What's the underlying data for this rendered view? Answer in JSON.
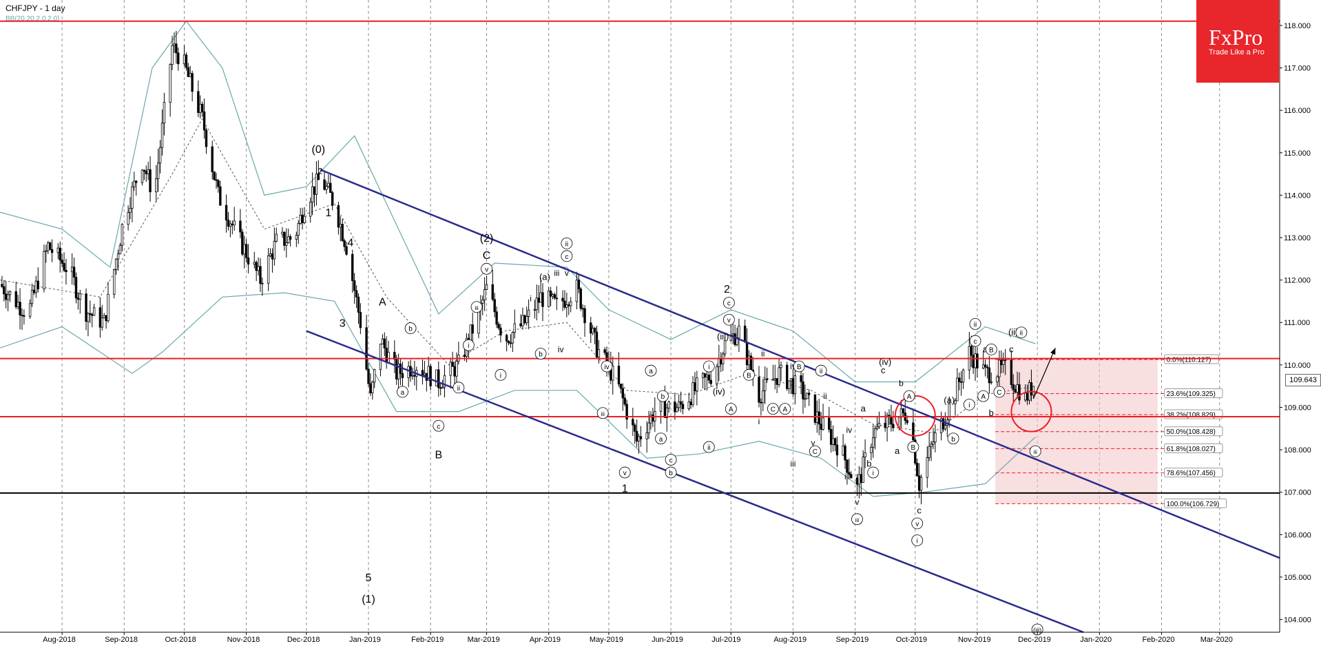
{
  "header": {
    "title": "CHFJPY - 1 day",
    "indicator": "BB(20,20,2,0,2,0)"
  },
  "logo": {
    "brand": "FxPro",
    "tagline": "Trade Like a Pro"
  },
  "colors": {
    "candle": "#000000",
    "bands": "#6aa7ad",
    "channel": "#2b2b8c",
    "level": "#ee1c24",
    "support": "#000000",
    "fib_zone": "#f3c4c6",
    "grid": "#8c8c8c",
    "logo_bg": "#e8262b"
  },
  "chart_data": {
    "type": "candlestick",
    "symbol": "CHFJPY",
    "timeframe": "1 day",
    "x_range": [
      "2018-07-01",
      "2020-03-31"
    ],
    "y_range": [
      103.7,
      118.6
    ],
    "x_ticks": [
      {
        "label": "Aug-2018",
        "date": "2018-08-01"
      },
      {
        "label": "Sep-2018",
        "date": "2018-09-01"
      },
      {
        "label": "Oct-2018",
        "date": "2018-10-01"
      },
      {
        "label": "Nov-2018",
        "date": "2018-11-01"
      },
      {
        "label": "Dec-2018",
        "date": "2018-12-01"
      },
      {
        "label": "Jan-2019",
        "date": "2019-01-01"
      },
      {
        "label": "Feb-2019",
        "date": "2019-02-01"
      },
      {
        "label": "Mar-2019",
        "date": "2019-03-01"
      },
      {
        "label": "Apr-2019",
        "date": "2019-04-01"
      },
      {
        "label": "May-2019",
        "date": "2019-05-01"
      },
      {
        "label": "Jun-2019",
        "date": "2019-06-01"
      },
      {
        "label": "Jul-2019",
        "date": "2019-07-01"
      },
      {
        "label": "Aug-2019",
        "date": "2019-08-01"
      },
      {
        "label": "Sep-2019",
        "date": "2019-09-01"
      },
      {
        "label": "Oct-2019",
        "date": "2019-10-01"
      },
      {
        "label": "Nov-2019",
        "date": "2019-11-01"
      },
      {
        "label": "Dec-2019",
        "date": "2019-12-01"
      },
      {
        "label": "Jan-2020",
        "date": "2020-01-01"
      },
      {
        "label": "Feb-2020",
        "date": "2020-02-01"
      },
      {
        "label": "Mar-2020",
        "date": "2020-03-01"
      }
    ],
    "y_ticks": [
      "104.000",
      "105.000",
      "106.000",
      "107.000",
      "108.000",
      "109.000",
      "110.000",
      "111.000",
      "112.000",
      "113.000",
      "114.000",
      "115.000",
      "116.000",
      "117.000",
      "118.000"
    ],
    "last_price": "109.643",
    "horizontal_levels": [
      {
        "price": 118.1,
        "color": "red"
      },
      {
        "price": 110.15,
        "color": "red"
      },
      {
        "price": 108.78,
        "color": "red"
      },
      {
        "price": 106.98,
        "color": "black"
      }
    ],
    "channel_lines": [
      {
        "from": [
          "2018-12-08",
          114.6
        ],
        "to": [
          "2020-03-31",
          105.45
        ]
      },
      {
        "from": [
          "2018-12-01",
          110.8
        ],
        "to": [
          "2019-12-24",
          103.7
        ]
      }
    ],
    "fibonacci": [
      {
        "label": "0.0%(110.127)",
        "price": 110.127
      },
      {
        "label": "23.6%(109.325)",
        "price": 109.325
      },
      {
        "label": "38.2%(108.829)",
        "price": 108.829
      },
      {
        "label": "50.0%(108.428)",
        "price": 108.428
      },
      {
        "label": "61.8%(108.027)",
        "price": 108.027
      },
      {
        "label": "78.6%(107.456)",
        "price": 107.456
      },
      {
        "label": "100.0%(106.729)",
        "price": 106.729
      }
    ],
    "fib_zone": {
      "from": "2019-11-10",
      "to": "2020-01-30",
      "high": 110.127,
      "low": 106.729
    },
    "circles": [
      {
        "date": "2019-10-01",
        "price": 108.8
      },
      {
        "date": "2019-11-28",
        "price": 108.9
      }
    ],
    "projection_arrow": {
      "from": [
        "2019-11-29",
        109.2
      ],
      "to": [
        "2019-12-10",
        110.4
      ]
    },
    "price_path": [
      [
        "2018-07-01",
        111.9
      ],
      [
        "2018-07-15",
        111.2
      ],
      [
        "2018-07-25",
        112.8
      ],
      [
        "2018-08-05",
        112.2
      ],
      [
        "2018-08-12",
        111.3
      ],
      [
        "2018-08-22",
        111.0
      ],
      [
        "2018-09-01",
        113.5
      ],
      [
        "2018-09-10",
        114.8
      ],
      [
        "2018-09-16",
        114.0
      ],
      [
        "2018-09-25",
        117.5
      ],
      [
        "2018-09-30",
        117.2
      ],
      [
        "2018-10-10",
        115.8
      ],
      [
        "2018-10-18",
        114.0
      ],
      [
        "2018-10-28",
        113.0
      ],
      [
        "2018-11-08",
        112.0
      ],
      [
        "2018-11-16",
        112.9
      ],
      [
        "2018-11-25",
        113.0
      ],
      [
        "2018-12-01",
        113.9
      ],
      [
        "2018-12-08",
        114.4
      ],
      [
        "2018-12-15",
        113.8
      ],
      [
        "2018-12-21",
        112.8
      ],
      [
        "2018-12-28",
        111.0
      ],
      [
        "2019-01-02",
        109.2
      ],
      [
        "2019-01-07",
        110.6
      ],
      [
        "2019-01-15",
        109.8
      ],
      [
        "2019-01-25",
        110.0
      ],
      [
        "2019-02-05",
        109.6
      ],
      [
        "2019-02-15",
        110.0
      ],
      [
        "2019-02-25",
        111.2
      ],
      [
        "2019-03-01",
        111.8
      ],
      [
        "2019-03-10",
        110.6
      ],
      [
        "2019-03-20",
        111.0
      ],
      [
        "2019-03-28",
        111.6
      ],
      [
        "2019-04-05",
        111.4
      ],
      [
        "2019-04-15",
        111.8
      ],
      [
        "2019-04-25",
        110.4
      ],
      [
        "2019-05-05",
        109.6
      ],
      [
        "2019-05-15",
        108.2
      ],
      [
        "2019-05-25",
        109.0
      ],
      [
        "2019-06-05",
        109.0
      ],
      [
        "2019-06-15",
        109.5
      ],
      [
        "2019-06-22",
        109.8
      ],
      [
        "2019-06-28",
        110.5
      ],
      [
        "2019-07-05",
        110.8
      ],
      [
        "2019-07-15",
        109.3
      ],
      [
        "2019-07-25",
        109.8
      ],
      [
        "2019-08-05",
        109.4
      ],
      [
        "2019-08-15",
        108.6
      ],
      [
        "2019-08-25",
        108.0
      ],
      [
        "2019-09-02",
        107.1
      ],
      [
        "2019-09-10",
        108.4
      ],
      [
        "2019-09-20",
        108.7
      ],
      [
        "2019-09-28",
        108.9
      ],
      [
        "2019-10-03",
        107.2
      ],
      [
        "2019-10-10",
        108.2
      ],
      [
        "2019-10-20",
        109.2
      ],
      [
        "2019-10-28",
        110.3
      ],
      [
        "2019-11-05",
        109.8
      ],
      [
        "2019-11-15",
        109.9
      ],
      [
        "2019-11-25",
        109.2
      ],
      [
        "2019-11-30",
        109.64
      ]
    ],
    "band_upper_path": [
      [
        "2018-07-01",
        113.6
      ],
      [
        "2018-08-01",
        113.2
      ],
      [
        "2018-08-25",
        112.3
      ],
      [
        "2018-09-15",
        117.0
      ],
      [
        "2018-10-02",
        118.1
      ],
      [
        "2018-10-20",
        117.0
      ],
      [
        "2018-11-10",
        114.0
      ],
      [
        "2018-12-01",
        114.2
      ],
      [
        "2018-12-25",
        115.4
      ],
      [
        "2019-01-10",
        113.8
      ],
      [
        "2019-02-05",
        111.2
      ],
      [
        "2019-03-05",
        112.4
      ],
      [
        "2019-04-10",
        112.3
      ],
      [
        "2019-05-01",
        111.3
      ],
      [
        "2019-06-01",
        110.6
      ],
      [
        "2019-07-01",
        111.3
      ],
      [
        "2019-08-01",
        110.8
      ],
      [
        "2019-09-01",
        109.6
      ],
      [
        "2019-10-01",
        109.6
      ],
      [
        "2019-11-05",
        110.9
      ],
      [
        "2019-11-30",
        110.5
      ]
    ],
    "band_lower_path": [
      [
        "2018-07-01",
        110.4
      ],
      [
        "2018-08-01",
        110.9
      ],
      [
        "2018-09-05",
        109.8
      ],
      [
        "2018-09-20",
        110.3
      ],
      [
        "2018-10-20",
        111.6
      ],
      [
        "2018-11-20",
        111.7
      ],
      [
        "2018-12-15",
        111.5
      ],
      [
        "2019-01-15",
        108.9
      ],
      [
        "2019-02-15",
        108.9
      ],
      [
        "2019-03-15",
        109.4
      ],
      [
        "2019-04-15",
        109.4
      ],
      [
        "2019-05-20",
        107.8
      ],
      [
        "2019-06-15",
        107.9
      ],
      [
        "2019-07-15",
        108.2
      ],
      [
        "2019-08-15",
        107.8
      ],
      [
        "2019-09-10",
        106.9
      ],
      [
        "2019-10-05",
        107.0
      ],
      [
        "2019-11-05",
        107.2
      ],
      [
        "2019-11-30",
        108.3
      ]
    ],
    "band_mid_path": [
      [
        "2018-07-01",
        112.0
      ],
      [
        "2018-08-20",
        111.6
      ],
      [
        "2018-09-25",
        114.5
      ],
      [
        "2018-10-10",
        115.8
      ],
      [
        "2018-11-10",
        113.2
      ],
      [
        "2018-12-15",
        113.8
      ],
      [
        "2019-01-10",
        111.6
      ],
      [
        "2019-02-10",
        110.0
      ],
      [
        "2019-03-10",
        110.8
      ],
      [
        "2019-04-10",
        111.0
      ],
      [
        "2019-05-10",
        109.4
      ],
      [
        "2019-06-10",
        109.3
      ],
      [
        "2019-07-10",
        109.8
      ],
      [
        "2019-08-10",
        109.4
      ],
      [
        "2019-09-10",
        108.6
      ],
      [
        "2019-10-10",
        108.4
      ],
      [
        "2019-11-05",
        109.3
      ],
      [
        "2019-11-30",
        109.5
      ]
    ],
    "wave_labels": [
      {
        "text": "(0)",
        "date": "2018-12-07",
        "price": 115.0,
        "size": 16
      },
      {
        "text": "1",
        "date": "2018-12-12",
        "price": 113.5,
        "size": 16
      },
      {
        "text": "2",
        "date": "2018-12-08",
        "price": 114.5,
        "size": 12
      },
      {
        "text": "4",
        "date": "2018-12-23",
        "price": 112.8,
        "size": 16
      },
      {
        "text": "3",
        "date": "2018-12-19",
        "price": 110.9,
        "size": 16
      },
      {
        "text": "A",
        "date": "2019-01-08",
        "price": 111.4,
        "size": 16
      },
      {
        "text": "B",
        "date": "2019-02-05",
        "price": 107.8,
        "size": 16
      },
      {
        "text": "(2)",
        "date": "2019-03-01",
        "price": 112.9,
        "size": 16
      },
      {
        "text": "C",
        "date": "2019-03-01",
        "price": 112.5,
        "size": 16
      },
      {
        "text": "1",
        "date": "2019-05-09",
        "price": 107.0,
        "size": 16
      },
      {
        "text": "2",
        "date": "2019-06-29",
        "price": 111.7,
        "size": 16
      },
      {
        "text": "5",
        "date": "2019-01-01",
        "price": 104.9,
        "size": 16
      },
      {
        "text": "(1)",
        "date": "2019-01-01",
        "price": 104.4,
        "size": 16
      },
      {
        "text": "(iv)",
        "date": "2019-09-16",
        "price": 110.0,
        "size": 13
      },
      {
        "text": "(iii)",
        "date": "2019-09-02",
        "price": 106.3,
        "size": 13
      },
      {
        "text": "(ii)",
        "date": "2019-11-19",
        "price": 110.7,
        "size": 13
      },
      {
        "text": "(iii)",
        "date": "2019-11-30",
        "price": 107.9,
        "size": 13
      },
      {
        "text": "(v)",
        "date": "2019-10-02",
        "price": 106.2,
        "size": 13
      },
      {
        "text": "(a)",
        "date": "2019-10-18",
        "price": 109.1,
        "size": 13
      },
      {
        "text": "(a)",
        "date": "2019-03-30",
        "price": 112.0,
        "size": 13
      },
      {
        "text": "(iii)",
        "date": "2019-06-27",
        "price": 110.6,
        "size": 13
      },
      {
        "text": "(iv)",
        "date": "2019-06-25",
        "price": 109.3,
        "size": 13
      },
      {
        "text": "a",
        "date": "2019-11-05",
        "price": 110.3,
        "size": 13
      },
      {
        "text": "c",
        "date": "2019-11-18",
        "price": 110.3,
        "size": 13
      },
      {
        "text": "b",
        "date": "2019-11-08",
        "price": 108.8,
        "size": 13
      },
      {
        "text": "c",
        "date": "2019-10-03",
        "price": 106.5,
        "size": 13
      },
      {
        "text": "c",
        "date": "2019-09-15",
        "price": 109.8,
        "size": 13
      },
      {
        "text": "a",
        "date": "2019-09-05",
        "price": 108.9,
        "size": 13
      },
      {
        "text": "b",
        "date": "2019-09-08",
        "price": 107.6,
        "size": 13
      },
      {
        "text": "a",
        "date": "2019-09-22",
        "price": 107.9,
        "size": 13
      },
      {
        "text": "iv",
        "date": "2019-08-01",
        "price": 109.9,
        "size": 12
      },
      {
        "text": "ii",
        "date": "2019-08-17",
        "price": 109.2,
        "size": 12
      },
      {
        "text": "i",
        "date": "2019-08-20",
        "price": 108.2,
        "size": 12
      },
      {
        "text": "v",
        "date": "2019-08-11",
        "price": 108.1,
        "size": 12
      },
      {
        "text": "iii",
        "date": "2019-08-01",
        "price": 107.6,
        "size": 12
      },
      {
        "text": "iv",
        "date": "2019-08-29",
        "price": 108.4,
        "size": 12
      },
      {
        "text": "iii",
        "date": "2019-08-28",
        "price": 107.3,
        "size": 12
      },
      {
        "text": "v",
        "date": "2019-09-02",
        "price": 106.7,
        "size": 12
      },
      {
        "text": "i",
        "date": "2019-07-15",
        "price": 108.6,
        "size": 12
      },
      {
        "text": "ii",
        "date": "2019-07-17",
        "price": 110.2,
        "size": 12
      },
      {
        "text": "iii",
        "date": "2019-04-05",
        "price": 112.1,
        "size": 12
      },
      {
        "text": "i",
        "date": "2019-03-23",
        "price": 111.5,
        "size": 12
      },
      {
        "text": "v",
        "date": "2019-04-10",
        "price": 112.1,
        "size": 12
      },
      {
        "text": "iv",
        "date": "2019-04-07",
        "price": 110.3,
        "size": 12
      },
      {
        "text": "ii",
        "date": "2019-03-28",
        "price": 110.2,
        "size": 12
      }
    ],
    "circled_labels": [
      {
        "text": "ii",
        "date": "2019-04-10",
        "price": 112.8
      },
      {
        "text": "c",
        "date": "2019-04-10",
        "price": 112.5
      },
      {
        "text": "v",
        "date": "2019-03-01",
        "price": 112.2
      },
      {
        "text": "iii",
        "date": "2019-02-24",
        "price": 111.3
      },
      {
        "text": "i",
        "date": "2019-02-20",
        "price": 110.4
      },
      {
        "text": "b",
        "date": "2019-01-22",
        "price": 110.8
      },
      {
        "text": "a",
        "date": "2019-01-18",
        "price": 109.3
      },
      {
        "text": "ii",
        "date": "2019-02-15",
        "price": 109.4
      },
      {
        "text": "c",
        "date": "2019-02-05",
        "price": 108.5
      },
      {
        "text": "i",
        "date": "2019-03-08",
        "price": 109.7
      },
      {
        "text": "b",
        "date": "2019-03-28",
        "price": 110.2
      },
      {
        "text": "iv",
        "date": "2019-04-30",
        "price": 109.9
      },
      {
        "text": "iii",
        "date": "2019-04-28",
        "price": 108.8
      },
      {
        "text": "v",
        "date": "2019-05-09",
        "price": 107.4
      },
      {
        "text": "a",
        "date": "2019-05-22",
        "price": 109.8
      },
      {
        "text": "b",
        "date": "2019-05-28",
        "price": 109.2
      },
      {
        "text": "a",
        "date": "2019-05-27",
        "price": 108.2
      },
      {
        "text": "c",
        "date": "2019-06-01",
        "price": 107.7
      },
      {
        "text": "b",
        "date": "2019-06-01",
        "price": 107.4
      },
      {
        "text": "i",
        "date": "2019-06-20",
        "price": 109.9
      },
      {
        "text": "ii",
        "date": "2019-06-20",
        "price": 108.0
      },
      {
        "text": "c",
        "date": "2019-06-30",
        "price": 111.4
      },
      {
        "text": "v",
        "date": "2019-06-30",
        "price": 111.0
      },
      {
        "text": "ii",
        "date": "2019-08-15",
        "price": 109.8
      },
      {
        "text": "i",
        "date": "2019-09-10",
        "price": 107.4
      },
      {
        "text": "iii",
        "date": "2019-09-02",
        "price": 106.3
      },
      {
        "text": "v",
        "date": "2019-10-02",
        "price": 106.2
      },
      {
        "text": "i",
        "date": "2019-10-02",
        "price": 105.8
      },
      {
        "text": "b",
        "date": "2019-10-20",
        "price": 108.2
      },
      {
        "text": "i",
        "date": "2019-10-28",
        "price": 109.0
      },
      {
        "text": "ii",
        "date": "2019-10-31",
        "price": 110.9
      },
      {
        "text": "c",
        "date": "2019-10-31",
        "price": 110.5
      },
      {
        "text": "ii",
        "date": "2019-11-23",
        "price": 110.7
      },
      {
        "text": "iii",
        "date": "2019-11-30",
        "price": 107.9
      },
      {
        "text": "A",
        "date": "2019-07-01",
        "price": 108.9
      },
      {
        "text": "B",
        "date": "2019-07-10",
        "price": 109.7
      },
      {
        "text": "C",
        "date": "2019-07-22",
        "price": 108.9
      },
      {
        "text": "A",
        "date": "2019-07-28",
        "price": 108.9
      },
      {
        "text": "B",
        "date": "2019-08-04",
        "price": 109.9
      },
      {
        "text": "C",
        "date": "2019-08-12",
        "price": 107.9
      },
      {
        "text": "A",
        "date": "2019-09-28",
        "price": 109.2
      },
      {
        "text": "B",
        "date": "2019-09-30",
        "price": 108.0
      },
      {
        "text": "A",
        "date": "2019-11-04",
        "price": 109.2
      },
      {
        "text": "B",
        "date": "2019-11-08",
        "price": 110.3
      },
      {
        "text": "C",
        "date": "2019-11-12",
        "price": 109.3
      }
    ],
    "plain_labels": [
      {
        "text": "b",
        "date": "2019-09-24",
        "price": 109.5
      },
      {
        "text": "a",
        "date": "2019-11-05",
        "price": 110.3
      }
    ],
    "bottom_label": {
      "text": "(iii)",
      "date": "2019-12-01",
      "price": 103.7
    }
  }
}
